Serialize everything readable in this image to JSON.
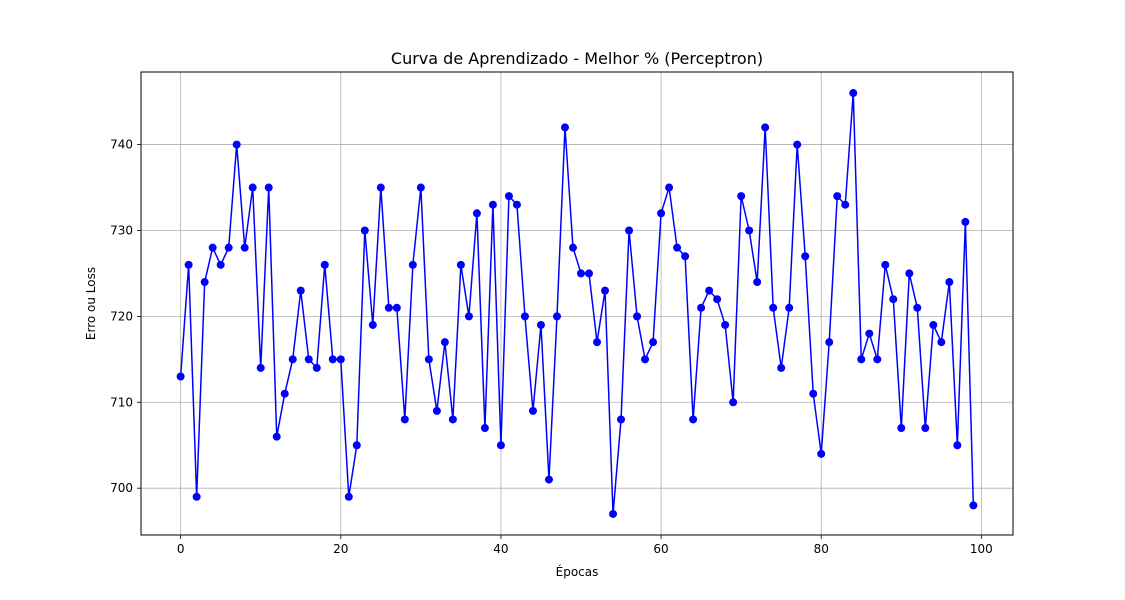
{
  "chart_data": {
    "type": "line",
    "title": "Curva de Aprendizado - Melhor % (Perceptron)",
    "xlabel": "Épocas",
    "ylabel": "Erro ou Loss",
    "xlim": [
      -4.95,
      103.95
    ],
    "ylim": [
      694.55,
      748.45
    ],
    "xticks": [
      0,
      20,
      40,
      60,
      80,
      100
    ],
    "yticks": [
      700,
      710,
      720,
      730,
      740
    ],
    "xtick_labels": [
      "0",
      "20",
      "40",
      "60",
      "80",
      "100"
    ],
    "ytick_labels": [
      "700",
      "710",
      "720",
      "730",
      "740"
    ],
    "grid": true,
    "series": [
      {
        "color": "#0000ff",
        "marker": "circle",
        "x": [
          0,
          1,
          2,
          3,
          4,
          5,
          6,
          7,
          8,
          9,
          10,
          11,
          12,
          13,
          14,
          15,
          16,
          17,
          18,
          19,
          20,
          21,
          22,
          23,
          24,
          25,
          26,
          27,
          28,
          29,
          30,
          31,
          32,
          33,
          34,
          35,
          36,
          37,
          38,
          39,
          40,
          41,
          42,
          43,
          44,
          45,
          46,
          47,
          48,
          49,
          50,
          51,
          52,
          53,
          54,
          55,
          56,
          57,
          58,
          59,
          60,
          61,
          62,
          63,
          64,
          65,
          66,
          67,
          68,
          69,
          70,
          71,
          72,
          73,
          74,
          75,
          76,
          77,
          78,
          79,
          80,
          81,
          82,
          83,
          84,
          85,
          86,
          87,
          88,
          89,
          90,
          91,
          92,
          93,
          94,
          95,
          96,
          97,
          98,
          99
        ],
        "y": [
          713,
          726,
          699,
          724,
          728,
          726,
          728,
          740,
          728,
          735,
          714,
          735,
          706,
          711,
          715,
          723,
          715,
          714,
          726,
          715,
          715,
          699,
          705,
          730,
          719,
          735,
          721,
          721,
          708,
          726,
          735,
          715,
          709,
          717,
          708,
          726,
          720,
          732,
          707,
          733,
          705,
          734,
          733,
          720,
          709,
          719,
          701,
          720,
          742,
          728,
          725,
          725,
          717,
          723,
          697,
          708,
          730,
          720,
          715,
          717,
          732,
          735,
          728,
          727,
          708,
          721,
          723,
          722,
          719,
          710,
          734,
          730,
          724,
          742,
          721,
          714,
          721,
          740,
          727,
          711,
          704,
          717,
          734,
          733,
          746,
          715,
          718,
          715,
          726,
          722,
          707,
          725,
          721,
          707,
          719,
          717,
          724,
          705,
          731,
          698
        ]
      }
    ]
  }
}
